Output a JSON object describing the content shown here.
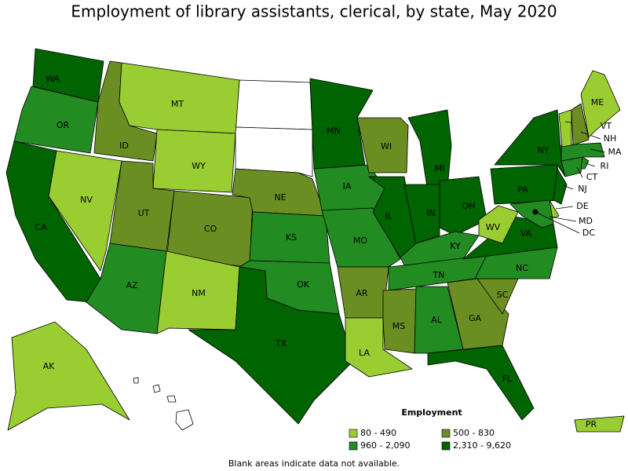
{
  "title": "Employment of library assistants, clerical, by state, May 2020",
  "legend": {
    "title": "Employment",
    "items": [
      {
        "label": "80 - 490",
        "color": "#9acd32"
      },
      {
        "label": "500 - 830",
        "color": "#6b8e23"
      },
      {
        "label": "960 - 2,090",
        "color": "#228b22"
      },
      {
        "label": "2,310 - 9,620",
        "color": "#006400"
      }
    ]
  },
  "states": [
    {
      "abbr": "WA",
      "color": "#006400"
    },
    {
      "abbr": "OR",
      "color": "#228b22"
    },
    {
      "abbr": "CA",
      "color": "#006400"
    },
    {
      "abbr": "NV",
      "color": "#9acd32"
    },
    {
      "abbr": "ID",
      "color": "#6b8e23"
    },
    {
      "abbr": "MT",
      "color": "#9acd32"
    },
    {
      "abbr": "WY",
      "color": "#9acd32"
    },
    {
      "abbr": "UT",
      "color": "#6b8e23"
    },
    {
      "abbr": "CO",
      "color": "#6b8e23"
    },
    {
      "abbr": "AZ",
      "color": "#228b22"
    },
    {
      "abbr": "NM",
      "color": "#9acd32"
    },
    {
      "abbr": "NE",
      "color": "#6b8e23"
    },
    {
      "abbr": "KS",
      "color": "#228b22"
    },
    {
      "abbr": "OK",
      "color": "#228b22"
    },
    {
      "abbr": "TX",
      "color": "#006400"
    },
    {
      "abbr": "MN",
      "color": "#006400"
    },
    {
      "abbr": "IA",
      "color": "#228b22"
    },
    {
      "abbr": "MO",
      "color": "#228b22"
    },
    {
      "abbr": "AR",
      "color": "#6b8e23"
    },
    {
      "abbr": "LA",
      "color": "#9acd32"
    },
    {
      "abbr": "WI",
      "color": "#6b8e23"
    },
    {
      "abbr": "IL",
      "color": "#006400"
    },
    {
      "abbr": "MI",
      "color": "#006400"
    },
    {
      "abbr": "IN",
      "color": "#006400"
    },
    {
      "abbr": "OH",
      "color": "#006400"
    },
    {
      "abbr": "KY",
      "color": "#228b22"
    },
    {
      "abbr": "TN",
      "color": "#228b22"
    },
    {
      "abbr": "MS",
      "color": "#6b8e23"
    },
    {
      "abbr": "AL",
      "color": "#228b22"
    },
    {
      "abbr": "GA",
      "color": "#6b8e23"
    },
    {
      "abbr": "FL",
      "color": "#006400"
    },
    {
      "abbr": "SC",
      "color": "#6b8e23"
    },
    {
      "abbr": "NC",
      "color": "#228b22"
    },
    {
      "abbr": "VA",
      "color": "#006400"
    },
    {
      "abbr": "WV",
      "color": "#9acd32"
    },
    {
      "abbr": "PA",
      "color": "#006400"
    },
    {
      "abbr": "NY",
      "color": "#006400"
    },
    {
      "abbr": "NJ",
      "color": "#006400"
    },
    {
      "abbr": "DE",
      "color": "#9acd32"
    },
    {
      "abbr": "MD",
      "color": "#228b22"
    },
    {
      "abbr": "DC",
      "color": "#006400"
    },
    {
      "abbr": "CT",
      "color": "#228b22"
    },
    {
      "abbr": "RI",
      "color": "#228b22"
    },
    {
      "abbr": "MA",
      "color": "#228b22"
    },
    {
      "abbr": "VT",
      "color": "#9acd32"
    },
    {
      "abbr": "NH",
      "color": "#6b8e23"
    },
    {
      "abbr": "ME",
      "color": "#9acd32"
    },
    {
      "abbr": "AK",
      "color": "#9acd32"
    },
    {
      "abbr": "PR",
      "color": "#9acd32"
    }
  ],
  "note": "Blank areas indicate data not available."
}
